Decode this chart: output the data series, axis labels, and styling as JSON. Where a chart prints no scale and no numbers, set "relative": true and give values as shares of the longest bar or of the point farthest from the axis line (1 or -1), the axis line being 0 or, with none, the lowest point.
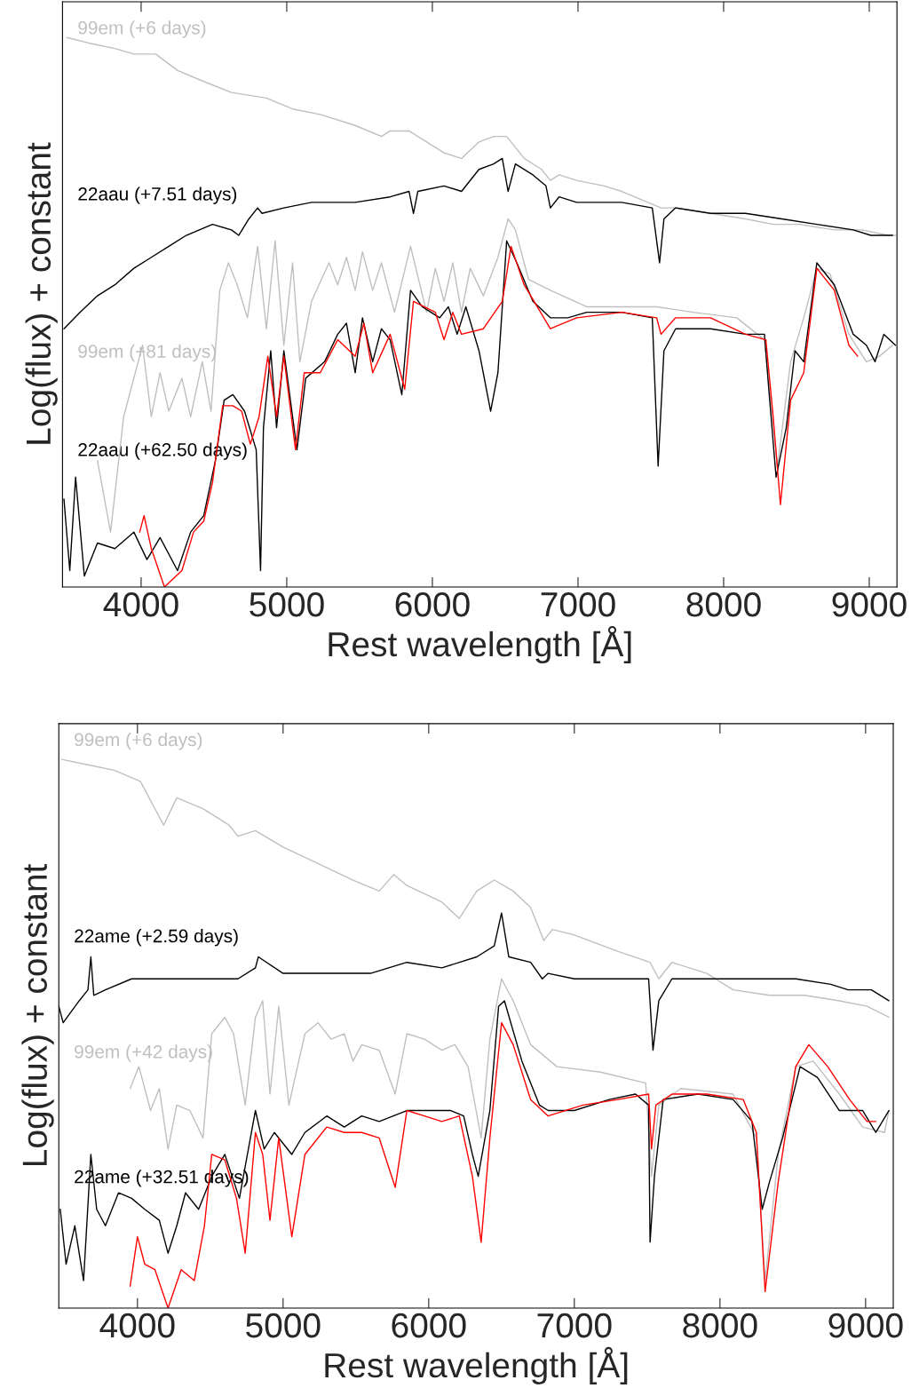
{
  "chart_data": [
    {
      "type": "line",
      "xlabel": "Rest wavelength [Å]",
      "ylabel": "Log(flux) + constant",
      "relative": true,
      "xlim": [
        3460,
        9190
      ],
      "xticks": [
        4000,
        5000,
        6000,
        7000,
        8000,
        9000
      ],
      "tick_labels": "x",
      "grid": false,
      "legend": false,
      "series": [
        {
          "name": "99em (+6 days)",
          "color": "#bfbfbf",
          "x": [
            3490,
            3640,
            3820,
            3950,
            4100,
            4250,
            4430,
            4620,
            4860,
            5040,
            5230,
            5470,
            5650,
            5710,
            5780,
            5840,
            5900,
            6080,
            6200,
            6320,
            6420,
            6510,
            6630,
            6750,
            6810,
            6870,
            6990,
            7180,
            7300,
            7480,
            7570,
            7670,
            7910,
            8150,
            8340,
            8520,
            8760,
            8950,
            9130,
            9180
          ],
          "values": [
            1.0,
            0.99,
            0.98,
            0.97,
            0.97,
            0.94,
            0.92,
            0.9,
            0.89,
            0.87,
            0.86,
            0.84,
            0.82,
            0.83,
            0.83,
            0.83,
            0.82,
            0.79,
            0.78,
            0.81,
            0.82,
            0.82,
            0.78,
            0.76,
            0.74,
            0.75,
            0.74,
            0.73,
            0.72,
            0.7,
            0.69,
            0.69,
            0.68,
            0.67,
            0.66,
            0.66,
            0.65,
            0.65,
            0.64,
            0.64
          ]
        },
        {
          "name": "22aau (+7.51 days)",
          "color": "#000000",
          "x": [
            3470,
            3580,
            3700,
            3820,
            3950,
            4070,
            4190,
            4310,
            4490,
            4620,
            4670,
            4740,
            4800,
            4830,
            4980,
            5170,
            5470,
            5710,
            5840,
            5870,
            5900,
            6080,
            6200,
            6320,
            6420,
            6480,
            6520,
            6570,
            6690,
            6780,
            6810,
            6870,
            6990,
            7300,
            7510,
            7560,
            7590,
            7670,
            7910,
            8150,
            8400,
            8640,
            8890,
            9010,
            9160
          ],
          "values": [
            0.47,
            0.5,
            0.53,
            0.55,
            0.58,
            0.6,
            0.62,
            0.64,
            0.66,
            0.65,
            0.64,
            0.67,
            0.69,
            0.68,
            0.69,
            0.7,
            0.7,
            0.71,
            0.72,
            0.68,
            0.72,
            0.73,
            0.72,
            0.76,
            0.77,
            0.78,
            0.72,
            0.77,
            0.75,
            0.73,
            0.69,
            0.71,
            0.7,
            0.7,
            0.69,
            0.59,
            0.67,
            0.69,
            0.68,
            0.68,
            0.67,
            0.66,
            0.65,
            0.64,
            0.64
          ]
        },
        {
          "name": "99em (+81 days)",
          "color": "#bfbfbf",
          "x": [
            3700,
            3790,
            3880,
            3950,
            4010,
            4070,
            4130,
            4190,
            4280,
            4340,
            4420,
            4480,
            4540,
            4600,
            4660,
            4730,
            4800,
            4860,
            4920,
            4980,
            5040,
            5090,
            5170,
            5290,
            5350,
            5410,
            5470,
            5520,
            5590,
            5650,
            5740,
            5850,
            5960,
            6020,
            6080,
            6140,
            6200,
            6260,
            6350,
            6450,
            6520,
            6570,
            6660,
            6810,
            7060,
            7300,
            7540,
            7790,
            8090,
            8280,
            8370,
            8460,
            8550,
            8640,
            8730,
            8860,
            8980,
            9070,
            9160
          ],
          "values": [
            0.23,
            0.1,
            0.31,
            0.38,
            0.44,
            0.31,
            0.39,
            0.32,
            0.38,
            0.31,
            0.41,
            0.32,
            0.54,
            0.59,
            0.55,
            0.49,
            0.62,
            0.47,
            0.63,
            0.44,
            0.59,
            0.41,
            0.52,
            0.59,
            0.55,
            0.6,
            0.54,
            0.61,
            0.54,
            0.59,
            0.5,
            0.62,
            0.5,
            0.58,
            0.52,
            0.59,
            0.5,
            0.58,
            0.53,
            0.6,
            0.67,
            0.65,
            0.56,
            0.54,
            0.51,
            0.51,
            0.51,
            0.5,
            0.49,
            0.45,
            0.22,
            0.41,
            0.49,
            0.58,
            0.57,
            0.46,
            0.41,
            0.42,
            0.44
          ]
        },
        {
          "name": "22aau (+62.50 days)",
          "color": "#000000",
          "x": [
            3470,
            3510,
            3550,
            3610,
            3700,
            3820,
            3950,
            4040,
            4130,
            4250,
            4340,
            4430,
            4510,
            4570,
            4630,
            4710,
            4790,
            4820,
            4840,
            4890,
            4930,
            4980,
            5070,
            5130,
            5260,
            5350,
            5410,
            5470,
            5520,
            5590,
            5650,
            5710,
            5790,
            5850,
            5930,
            6050,
            6110,
            6170,
            6230,
            6320,
            6400,
            6450,
            6510,
            6580,
            6690,
            6810,
            6930,
            7060,
            7300,
            7510,
            7550,
            7590,
            7670,
            7910,
            8150,
            8280,
            8310,
            8360,
            8430,
            8490,
            8550,
            8640,
            8760,
            8890,
            8980,
            9040,
            9100,
            9180
          ],
          "values": [
            0.16,
            0.03,
            0.2,
            0.02,
            0.08,
            0.07,
            0.1,
            0.05,
            0.09,
            0.03,
            0.1,
            0.13,
            0.23,
            0.34,
            0.35,
            0.32,
            0.25,
            0.03,
            0.29,
            0.43,
            0.29,
            0.43,
            0.25,
            0.38,
            0.41,
            0.46,
            0.48,
            0.39,
            0.49,
            0.41,
            0.47,
            0.45,
            0.35,
            0.54,
            0.51,
            0.49,
            0.51,
            0.46,
            0.51,
            0.43,
            0.32,
            0.39,
            0.63,
            0.59,
            0.52,
            0.49,
            0.49,
            0.5,
            0.5,
            0.49,
            0.22,
            0.43,
            0.47,
            0.47,
            0.46,
            0.46,
            0.36,
            0.2,
            0.29,
            0.43,
            0.41,
            0.59,
            0.55,
            0.46,
            0.44,
            0.41,
            0.46,
            0.44
          ]
        },
        {
          "color": "#ff0000",
          "x": [
            3990,
            4020,
            4070,
            4160,
            4280,
            4360,
            4430,
            4490,
            4560,
            4630,
            4690,
            4750,
            4810,
            4870,
            4930,
            4980,
            5060,
            5120,
            5230,
            5350,
            5470,
            5530,
            5590,
            5710,
            5810,
            5870,
            6020,
            6080,
            6140,
            6200,
            6350,
            6480,
            6540,
            6630,
            6810,
            6990,
            7300,
            7540,
            7570,
            7670,
            7910,
            8150,
            8290,
            8340,
            8390,
            8460,
            8550,
            8640,
            8760,
            8860,
            8920
          ],
          "values": [
            0.1,
            0.13,
            0.07,
            0.0,
            0.03,
            0.1,
            0.12,
            0.19,
            0.33,
            0.33,
            0.32,
            0.26,
            0.31,
            0.42,
            0.31,
            0.42,
            0.25,
            0.39,
            0.39,
            0.45,
            0.42,
            0.48,
            0.39,
            0.46,
            0.36,
            0.52,
            0.5,
            0.45,
            0.5,
            0.46,
            0.47,
            0.52,
            0.62,
            0.55,
            0.47,
            0.49,
            0.5,
            0.49,
            0.46,
            0.49,
            0.49,
            0.46,
            0.45,
            0.31,
            0.15,
            0.34,
            0.39,
            0.58,
            0.54,
            0.44,
            0.42
          ]
        }
      ]
    },
    {
      "type": "line",
      "xlabel": "Rest wavelength [Å]",
      "ylabel": "Log(flux) + constant",
      "relative": true,
      "xlim": [
        3460,
        9190
      ],
      "xticks": [
        4000,
        5000,
        6000,
        7000,
        8000,
        9000
      ],
      "tick_labels": "x",
      "grid": false,
      "legend": false,
      "series": [
        {
          "name": "99em (+6 days)",
          "color": "#bfbfbf",
          "x": [
            3480,
            3660,
            3840,
            4020,
            4180,
            4270,
            4450,
            4630,
            4690,
            4810,
            5000,
            5240,
            5480,
            5660,
            5760,
            5850,
            6090,
            6210,
            6330,
            6450,
            6580,
            6700,
            6790,
            6850,
            7000,
            7300,
            7520,
            7580,
            7670,
            7910,
            8090,
            8340,
            8580,
            8820,
            9010,
            9160
          ],
          "values": [
            1.0,
            0.99,
            0.98,
            0.96,
            0.88,
            0.93,
            0.91,
            0.88,
            0.86,
            0.87,
            0.84,
            0.81,
            0.78,
            0.76,
            0.79,
            0.77,
            0.74,
            0.71,
            0.76,
            0.78,
            0.76,
            0.73,
            0.67,
            0.69,
            0.68,
            0.65,
            0.63,
            0.6,
            0.63,
            0.61,
            0.58,
            0.57,
            0.57,
            0.56,
            0.55,
            0.53
          ]
        },
        {
          "name": "22ame (+2.59 days)",
          "color": "#000000",
          "x": [
            3460,
            3490,
            3600,
            3660,
            3680,
            3700,
            3780,
            3960,
            4270,
            4510,
            4690,
            4810,
            4830,
            5000,
            5360,
            5600,
            5850,
            6090,
            6330,
            6450,
            6500,
            6550,
            6700,
            6780,
            6820,
            7000,
            7300,
            7510,
            7540,
            7580,
            7670,
            7910,
            8220,
            8520,
            8760,
            8880,
            9040,
            9160
          ],
          "values": [
            0.55,
            0.52,
            0.56,
            0.58,
            0.64,
            0.57,
            0.58,
            0.6,
            0.6,
            0.6,
            0.6,
            0.62,
            0.64,
            0.61,
            0.61,
            0.61,
            0.63,
            0.62,
            0.64,
            0.66,
            0.72,
            0.64,
            0.63,
            0.6,
            0.61,
            0.6,
            0.6,
            0.6,
            0.47,
            0.56,
            0.6,
            0.6,
            0.6,
            0.6,
            0.59,
            0.58,
            0.58,
            0.56
          ]
        },
        {
          "name": "99em (+42 days)",
          "color": "#bfbfbf",
          "x": [
            3950,
            4010,
            4090,
            4150,
            4210,
            4270,
            4360,
            4450,
            4510,
            4600,
            4660,
            4740,
            4810,
            4860,
            4910,
            4970,
            5040,
            5150,
            5240,
            5330,
            5420,
            5480,
            5540,
            5660,
            5770,
            5850,
            5970,
            6090,
            6180,
            6270,
            6360,
            6420,
            6500,
            6580,
            6700,
            6880,
            7180,
            7490,
            7530,
            7580,
            7730,
            8090,
            8250,
            8310,
            8400,
            8520,
            8640,
            8820,
            8980,
            9130,
            9160
          ],
          "values": [
            0.4,
            0.44,
            0.36,
            0.4,
            0.29,
            0.37,
            0.36,
            0.31,
            0.5,
            0.53,
            0.5,
            0.37,
            0.53,
            0.56,
            0.39,
            0.55,
            0.37,
            0.5,
            0.52,
            0.49,
            0.5,
            0.45,
            0.48,
            0.47,
            0.39,
            0.5,
            0.49,
            0.47,
            0.48,
            0.44,
            0.31,
            0.49,
            0.6,
            0.56,
            0.48,
            0.44,
            0.43,
            0.41,
            0.24,
            0.37,
            0.4,
            0.39,
            0.31,
            0.05,
            0.28,
            0.44,
            0.45,
            0.39,
            0.33,
            0.32,
            0.36
          ]
        },
        {
          "name": "22ame (+32.51 days)",
          "color": "#000000",
          "x": [
            3470,
            3510,
            3570,
            3630,
            3680,
            3720,
            3780,
            3870,
            3960,
            4050,
            4150,
            4210,
            4270,
            4330,
            4420,
            4510,
            4600,
            4700,
            4810,
            4870,
            4940,
            5060,
            5150,
            5300,
            5420,
            5540,
            5660,
            5850,
            5970,
            6150,
            6240,
            6300,
            6340,
            6420,
            6480,
            6520,
            6640,
            6760,
            6820,
            7000,
            7240,
            7420,
            7510,
            7520,
            7550,
            7610,
            7850,
            8090,
            8220,
            8290,
            8340,
            8430,
            8550,
            8670,
            8820,
            8980,
            9070,
            9160
          ],
          "values": [
            0.18,
            0.08,
            0.15,
            0.05,
            0.28,
            0.18,
            0.15,
            0.21,
            0.2,
            0.18,
            0.16,
            0.1,
            0.15,
            0.21,
            0.18,
            0.24,
            0.28,
            0.2,
            0.36,
            0.29,
            0.32,
            0.28,
            0.32,
            0.35,
            0.33,
            0.35,
            0.34,
            0.36,
            0.36,
            0.36,
            0.35,
            0.28,
            0.24,
            0.36,
            0.55,
            0.56,
            0.45,
            0.37,
            0.36,
            0.36,
            0.38,
            0.39,
            0.37,
            0.12,
            0.24,
            0.38,
            0.39,
            0.38,
            0.34,
            0.18,
            0.23,
            0.31,
            0.44,
            0.42,
            0.36,
            0.36,
            0.32,
            0.36
          ]
        },
        {
          "color": "#ff0000",
          "x": [
            3950,
            4000,
            4050,
            4120,
            4210,
            4300,
            4390,
            4460,
            4510,
            4600,
            4680,
            4740,
            4810,
            4860,
            4910,
            4970,
            5060,
            5150,
            5300,
            5420,
            5540,
            5660,
            5770,
            5850,
            5970,
            6090,
            6210,
            6300,
            6360,
            6420,
            6500,
            6580,
            6700,
            6820,
            7060,
            7300,
            7510,
            7530,
            7560,
            7670,
            7910,
            8160,
            8250,
            8310,
            8400,
            8520,
            8610,
            8740,
            8890,
            9010,
            9070
          ],
          "values": [
            0.04,
            0.13,
            0.08,
            0.07,
            0.0,
            0.07,
            0.05,
            0.15,
            0.28,
            0.27,
            0.2,
            0.1,
            0.32,
            0.28,
            0.16,
            0.31,
            0.13,
            0.28,
            0.33,
            0.32,
            0.32,
            0.31,
            0.22,
            0.36,
            0.35,
            0.34,
            0.35,
            0.24,
            0.12,
            0.31,
            0.52,
            0.48,
            0.38,
            0.35,
            0.37,
            0.38,
            0.39,
            0.29,
            0.37,
            0.39,
            0.39,
            0.38,
            0.32,
            0.03,
            0.23,
            0.44,
            0.48,
            0.44,
            0.38,
            0.34,
            0.34
          ]
        }
      ]
    }
  ]
}
